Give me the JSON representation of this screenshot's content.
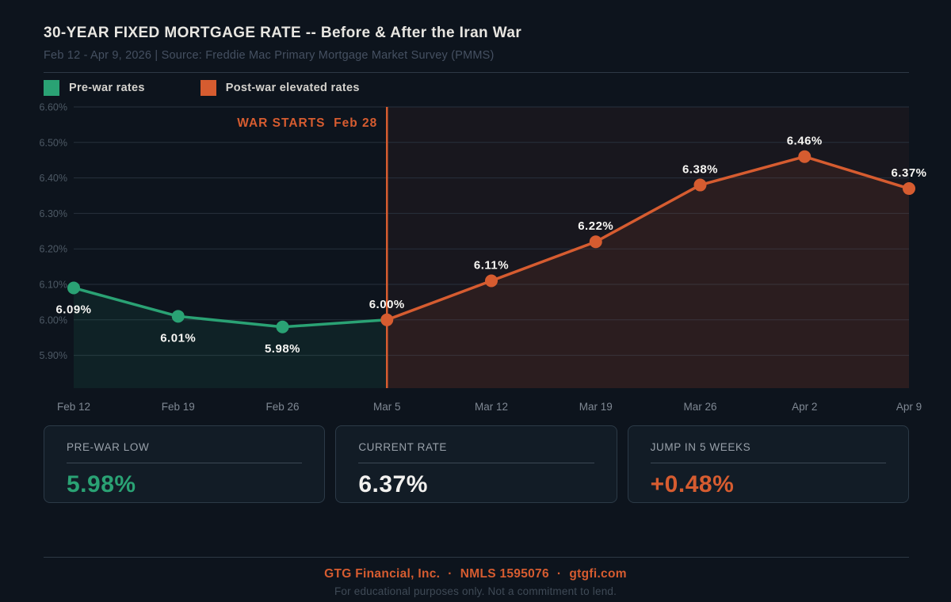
{
  "header": {
    "title": "30-YEAR FIXED MORTGAGE RATE -- Before & After the Iran War",
    "subtitle": "Feb 12 - Apr 9, 2026  |  Source: Freddie Mac Primary Mortgage Market Survey (PMMS)"
  },
  "legend": [
    {
      "label": "Pre-war rates",
      "color": "#2aa274"
    },
    {
      "label": "Post-war elevated rates",
      "color": "#d65c30"
    }
  ],
  "chart_data": {
    "type": "line",
    "x_labels": [
      "Feb 12",
      "Feb 19",
      "Feb 26",
      "Mar 5",
      "Mar 12",
      "Mar 19",
      "Mar 26",
      "Apr 2",
      "Apr 9"
    ],
    "y_ticks": [
      {
        "label": "6.60%",
        "value": 6.6
      },
      {
        "label": "6.50%",
        "value": 6.5
      },
      {
        "label": "6.40%",
        "value": 6.4
      },
      {
        "label": "6.30%",
        "value": 6.3
      },
      {
        "label": "6.20%",
        "value": 6.2
      },
      {
        "label": "6.10%",
        "value": 6.1
      },
      {
        "label": "6.00%",
        "value": 6.0
      },
      {
        "label": "5.90%",
        "value": 5.9
      }
    ],
    "grid": true,
    "legend_position": "top-left",
    "series": [
      {
        "key": "pre",
        "name": "Pre-war rates",
        "color": "#2aa274",
        "fill": "rgba(42,162,116,0.10)",
        "indices": [
          0,
          1,
          2,
          3
        ]
      },
      {
        "key": "post",
        "name": "Post-war elevated rates",
        "color": "#d65c30",
        "fill": "rgba(214,92,48,0.10)",
        "indices": [
          3,
          4,
          5,
          6,
          7,
          8
        ]
      }
    ],
    "points": [
      {
        "x": "Feb 12",
        "value": 6.09,
        "label": "6.09%",
        "dot": "pre",
        "label_pos": "below"
      },
      {
        "x": "Feb 19",
        "value": 6.01,
        "label": "6.01%",
        "dot": "pre",
        "label_pos": "below"
      },
      {
        "x": "Feb 26",
        "value": 5.98,
        "label": "5.98%",
        "dot": "pre",
        "label_pos": "below"
      },
      {
        "x": "Mar 5",
        "value": 6.0,
        "label": "6.00%",
        "dot": "post",
        "label_pos": "above"
      },
      {
        "x": "Mar 12",
        "value": 6.11,
        "label": "6.11%",
        "dot": "post",
        "label_pos": "above"
      },
      {
        "x": "Mar 19",
        "value": 6.22,
        "label": "6.22%",
        "dot": "post",
        "label_pos": "above"
      },
      {
        "x": "Mar 26",
        "value": 6.38,
        "label": "6.38%",
        "dot": "post",
        "label_pos": "above"
      },
      {
        "x": "Apr 2",
        "value": 6.46,
        "label": "6.46%",
        "dot": "post",
        "label_pos": "above"
      },
      {
        "x": "Apr 9",
        "value": 6.37,
        "label": "6.37%",
        "dot": "post",
        "label_pos": "above"
      }
    ],
    "annotation": {
      "text": "WAR STARTS",
      "date": "Feb 28",
      "at_x_index": 3,
      "color": "#d65c30",
      "zone_fill": "rgba(214,92,48,0.055)"
    }
  },
  "cards": [
    {
      "label": "PRE-WAR LOW",
      "value": "5.98%",
      "color": "#2aa274"
    },
    {
      "label": "CURRENT RATE",
      "value": "6.37%",
      "color": "#f2f1ef"
    },
    {
      "label": "JUMP IN 5 WEEKS",
      "value": "+0.48%",
      "color": "#d65c30"
    }
  ],
  "footer": {
    "brand": "GTG Financial, Inc.",
    "nmls": "NMLS 1595076",
    "site": "gtgfi.com",
    "separator": "·",
    "disclaimer": "For educational purposes only. Not a commitment to lend."
  }
}
